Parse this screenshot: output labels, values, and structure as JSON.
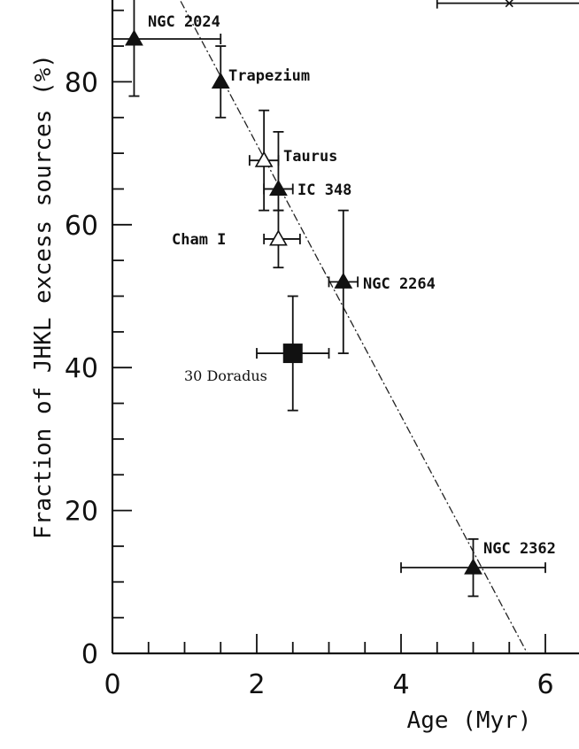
{
  "chart_data": {
    "type": "scatter",
    "xlabel": "Age (Myr)",
    "ylabel": "Fraction of JHKL excess sources (%)",
    "xlim": [
      0,
      6.7
    ],
    "ylim": [
      0,
      92
    ],
    "x_ticks": [
      "0",
      "2",
      "4",
      "6"
    ],
    "y_ticks": [
      "0",
      "20",
      "40",
      "60",
      "80"
    ],
    "grid": false,
    "points": [
      {
        "label": "NGC 2024",
        "x": 0.3,
        "y": 86,
        "xerr": [
          0.3,
          1.2
        ],
        "yerr": [
          8,
          8
        ],
        "marker": "filled-triangle"
      },
      {
        "label": "Trapezium",
        "x": 1.5,
        "y": 80,
        "xerr": null,
        "yerr": [
          5,
          5
        ],
        "marker": "filled-triangle"
      },
      {
        "label": "Taurus",
        "x": 2.1,
        "y": 69,
        "xerr": [
          0.2,
          0.2
        ],
        "yerr": [
          7,
          7
        ],
        "marker": "open-triangle"
      },
      {
        "label": "IC 348",
        "x": 2.3,
        "y": 65,
        "xerr": [
          0.2,
          0.2
        ],
        "yerr": [
          3,
          8
        ],
        "marker": "filled-triangle"
      },
      {
        "label": "Cham I",
        "x": 2.3,
        "y": 58,
        "xerr": [
          0.2,
          0.3
        ],
        "yerr": [
          4,
          4
        ],
        "marker": "open-triangle"
      },
      {
        "label": "NGC 2264",
        "x": 3.2,
        "y": 52,
        "xerr": [
          0.2,
          0.2
        ],
        "yerr": [
          10,
          10
        ],
        "marker": "filled-triangle"
      },
      {
        "label": "30 Doradus",
        "x": 2.5,
        "y": 42,
        "xerr": [
          0.5,
          0.5
        ],
        "yerr": [
          8,
          8
        ],
        "marker": "filled-square"
      },
      {
        "label": "NGC 2362",
        "x": 5.0,
        "y": 12,
        "xerr": [
          1.0,
          1.0
        ],
        "yerr": [
          4,
          4
        ],
        "marker": "filled-triangle"
      },
      {
        "label": "",
        "x": 5.5,
        "y": 91,
        "xerr": [
          1.0,
          1.2
        ],
        "yerr": null,
        "marker": "cross"
      }
    ],
    "fit_line": {
      "style": "dash-dot",
      "from": [
        0.75,
        95
      ],
      "to": [
        5.75,
        0
      ]
    }
  }
}
